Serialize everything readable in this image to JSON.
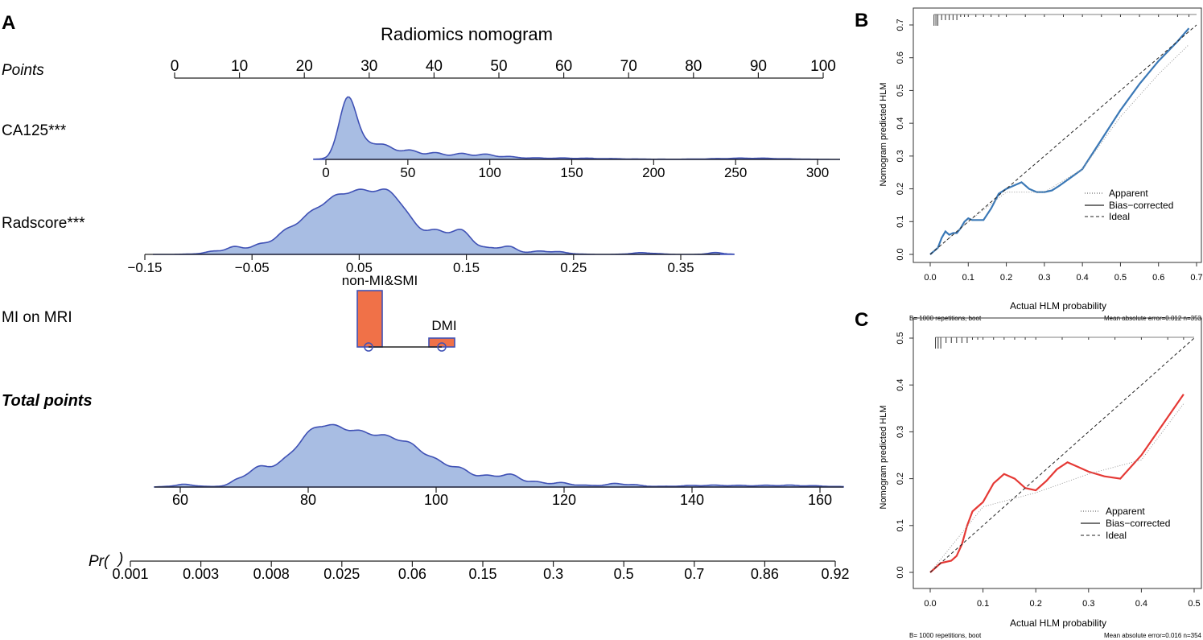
{
  "colors": {
    "density_fill": "#a8bde3",
    "density_line": "#3f51b5",
    "bar_fill": "#f07148",
    "bar_stroke": "#3f51b5",
    "line_b": "#3a78b6",
    "line_c": "#e53935",
    "axis": "#222222"
  },
  "panel_a": {
    "panel_label": "A",
    "title": "Radiomics nomogram",
    "rows": {
      "points": {
        "label": "Points",
        "ticks": [
          0,
          10,
          20,
          30,
          40,
          50,
          60,
          70,
          80,
          90,
          100
        ]
      },
      "ca125": {
        "label": "CA125***",
        "ticks": [
          0,
          50,
          100,
          150,
          200,
          250,
          300
        ]
      },
      "radscore": {
        "label": "Radscore***",
        "ticks": [
          "-0.15",
          "-0.05",
          "0.05",
          "0.15",
          "0.25",
          "0.35"
        ]
      },
      "mi_mri": {
        "label": "MI on MRI",
        "categories": [
          "non-MI&SMI",
          "DMI"
        ],
        "relative_freq": [
          1.0,
          0.15
        ]
      },
      "total": {
        "label": "Total points",
        "ticks": [
          60,
          80,
          100,
          120,
          140,
          160
        ]
      },
      "pr": {
        "label": "Pr( )",
        "ticks": [
          "0.001",
          "0.003",
          "0.008",
          "0.025",
          "0.06",
          "0.15",
          "0.3",
          "0.5",
          "0.7",
          "0.86",
          "0.92"
        ]
      }
    }
  },
  "chart_data": [
    {
      "type": "line",
      "panel": "B",
      "xlabel": "Actual HLM probability",
      "ylabel": "Nomogram predicted HLM",
      "xlim": [
        0,
        0.7
      ],
      "ylim": [
        0,
        0.7
      ],
      "xticks": [
        "0.0",
        "0.1",
        "0.2",
        "0.3",
        "0.4",
        "0.5",
        "0.6",
        "0.7"
      ],
      "yticks": [
        "0.0",
        "0.1",
        "0.2",
        "0.3",
        "0.4",
        "0.5",
        "0.6",
        "0.7"
      ],
      "legend": [
        "Apparent",
        "Bias−corrected",
        "Ideal"
      ],
      "footer_left": "B= 1000 repetitions, boot",
      "footer_right": "Mean absolute error=0.012 n=353",
      "series": [
        {
          "name": "Bias-corrected",
          "x": [
            0.0,
            0.01,
            0.02,
            0.03,
            0.04,
            0.05,
            0.06,
            0.07,
            0.08,
            0.09,
            0.1,
            0.11,
            0.14,
            0.16,
            0.18,
            0.2,
            0.22,
            0.24,
            0.26,
            0.28,
            0.3,
            0.32,
            0.34,
            0.37,
            0.4,
            0.45,
            0.5,
            0.55,
            0.6,
            0.65,
            0.68
          ],
          "y": [
            0.0,
            0.01,
            0.02,
            0.05,
            0.07,
            0.06,
            0.065,
            0.065,
            0.08,
            0.1,
            0.11,
            0.105,
            0.105,
            0.14,
            0.185,
            0.2,
            0.21,
            0.22,
            0.2,
            0.19,
            0.19,
            0.195,
            0.21,
            0.235,
            0.26,
            0.35,
            0.44,
            0.52,
            0.59,
            0.65,
            0.69
          ]
        },
        {
          "name": "Apparent",
          "x": [
            0.0,
            0.1,
            0.2,
            0.3,
            0.4,
            0.5,
            0.6,
            0.68
          ],
          "y": [
            0.0,
            0.1,
            0.19,
            0.19,
            0.26,
            0.42,
            0.55,
            0.64
          ]
        },
        {
          "name": "Ideal",
          "x": [
            0,
            0.7
          ],
          "y": [
            0,
            0.7
          ]
        }
      ],
      "rug": [
        0.01,
        0.015,
        0.02,
        0.03,
        0.04,
        0.05,
        0.06,
        0.07,
        0.08,
        0.09,
        0.1,
        0.12,
        0.14,
        0.16,
        0.18,
        0.2,
        0.25,
        0.3,
        0.35,
        0.4,
        0.45,
        0.5,
        0.55,
        0.6,
        0.65,
        0.68
      ]
    },
    {
      "type": "line",
      "panel": "C",
      "xlabel": "Actual HLM probability",
      "ylabel": "Nomogram predicted HLM",
      "xlim": [
        0,
        0.5
      ],
      "ylim": [
        0,
        0.5
      ],
      "xticks": [
        "0.0",
        "0.1",
        "0.2",
        "0.3",
        "0.4",
        "0.5"
      ],
      "yticks": [
        "0.0",
        "0.1",
        "0.2",
        "0.3",
        "0.4",
        "0.5"
      ],
      "legend": [
        "Apparent",
        "Bias−corrected",
        "Ideal"
      ],
      "footer_left": "B= 1000 repetitions, boot",
      "footer_right": "Mean absolute error=0.016 n=354",
      "series": [
        {
          "name": "Bias-corrected",
          "x": [
            0.0,
            0.02,
            0.04,
            0.05,
            0.06,
            0.07,
            0.08,
            0.09,
            0.1,
            0.12,
            0.14,
            0.16,
            0.18,
            0.2,
            0.22,
            0.24,
            0.26,
            0.28,
            0.3,
            0.33,
            0.36,
            0.4,
            0.44,
            0.48
          ],
          "y": [
            0.0,
            0.02,
            0.025,
            0.035,
            0.06,
            0.1,
            0.13,
            0.14,
            0.15,
            0.19,
            0.21,
            0.2,
            0.18,
            0.175,
            0.195,
            0.22,
            0.235,
            0.225,
            0.215,
            0.205,
            0.2,
            0.25,
            0.315,
            0.38
          ]
        },
        {
          "name": "Apparent",
          "x": [
            0.0,
            0.1,
            0.2,
            0.3,
            0.4,
            0.48
          ],
          "y": [
            0.0,
            0.14,
            0.17,
            0.21,
            0.24,
            0.36
          ]
        },
        {
          "name": "Ideal",
          "x": [
            0,
            0.5
          ],
          "y": [
            0,
            0.5
          ]
        }
      ],
      "rug": [
        0.01,
        0.015,
        0.02,
        0.03,
        0.04,
        0.05,
        0.06,
        0.07,
        0.08,
        0.09,
        0.1,
        0.12,
        0.14,
        0.16,
        0.18,
        0.2,
        0.25,
        0.3,
        0.35,
        0.4,
        0.45,
        0.48
      ]
    }
  ]
}
